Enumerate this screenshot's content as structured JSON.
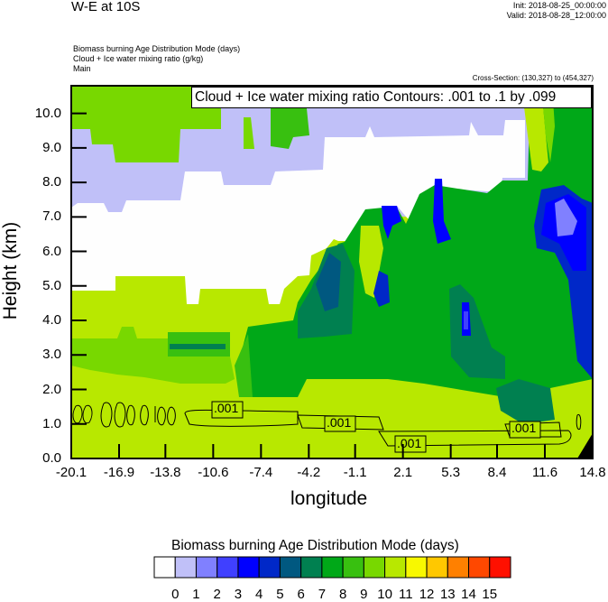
{
  "header": {
    "title": "W-E at 10S",
    "init": "Init: 2018-08-25_00:00:00",
    "valid": "Valid: 2018-08-28_12:00:00",
    "subtitles": [
      "Biomass burning Age Distribution Mode   (days)",
      "Cloud + Ice water mixing ratio   (g/kg)",
      "Main"
    ],
    "cross_section": "Cross-Section: (130,327) to (454,327)"
  },
  "chart_data": {
    "type": "contour",
    "xlabel": "longitude",
    "ylabel": "Height (km)",
    "xlim": [
      -20.1,
      14.8
    ],
    "ylim": [
      0.0,
      10.8
    ],
    "x_ticks": [
      "-20.1",
      "-16.9",
      "-13.8",
      "-10.6",
      "-7.4",
      "-4.2",
      "-1.1",
      "2.1",
      "5.3",
      "8.4",
      "11.6",
      "14.8"
    ],
    "y_ticks": [
      "0.0",
      "1.0",
      "2.0",
      "3.0",
      "4.0",
      "5.0",
      "6.0",
      "7.0",
      "8.0",
      "9.0",
      "10.0"
    ],
    "filled_field": {
      "name": "Biomass burning Age Distribution Mode  (days)",
      "levels": [
        "0",
        "1",
        "2",
        "3",
        "4",
        "5",
        "6",
        "7",
        "8",
        "9",
        "10",
        "11",
        "12",
        "13",
        "14",
        "15"
      ],
      "colors": [
        "#fefefe",
        "#c0c0f8",
        "#8080ff",
        "#4040ff",
        "#0000ff",
        "#0028c8",
        "#005880",
        "#008050",
        "#00a818",
        "#38c010",
        "#78d800",
        "#b8e800",
        "#f8f800",
        "#ffc800",
        "#ff8000",
        "#ff4800",
        "#ff1000"
      ]
    },
    "line_field": {
      "legend": "Cloud + Ice water mixing ratio Contours: .001 to .1 by .099",
      "levels": [
        0.001,
        0.1
      ],
      "labels": [
        ".001",
        ".001",
        ".001",
        ".001"
      ],
      "legend_swatch_color": "#78d800"
    },
    "grid": false
  }
}
